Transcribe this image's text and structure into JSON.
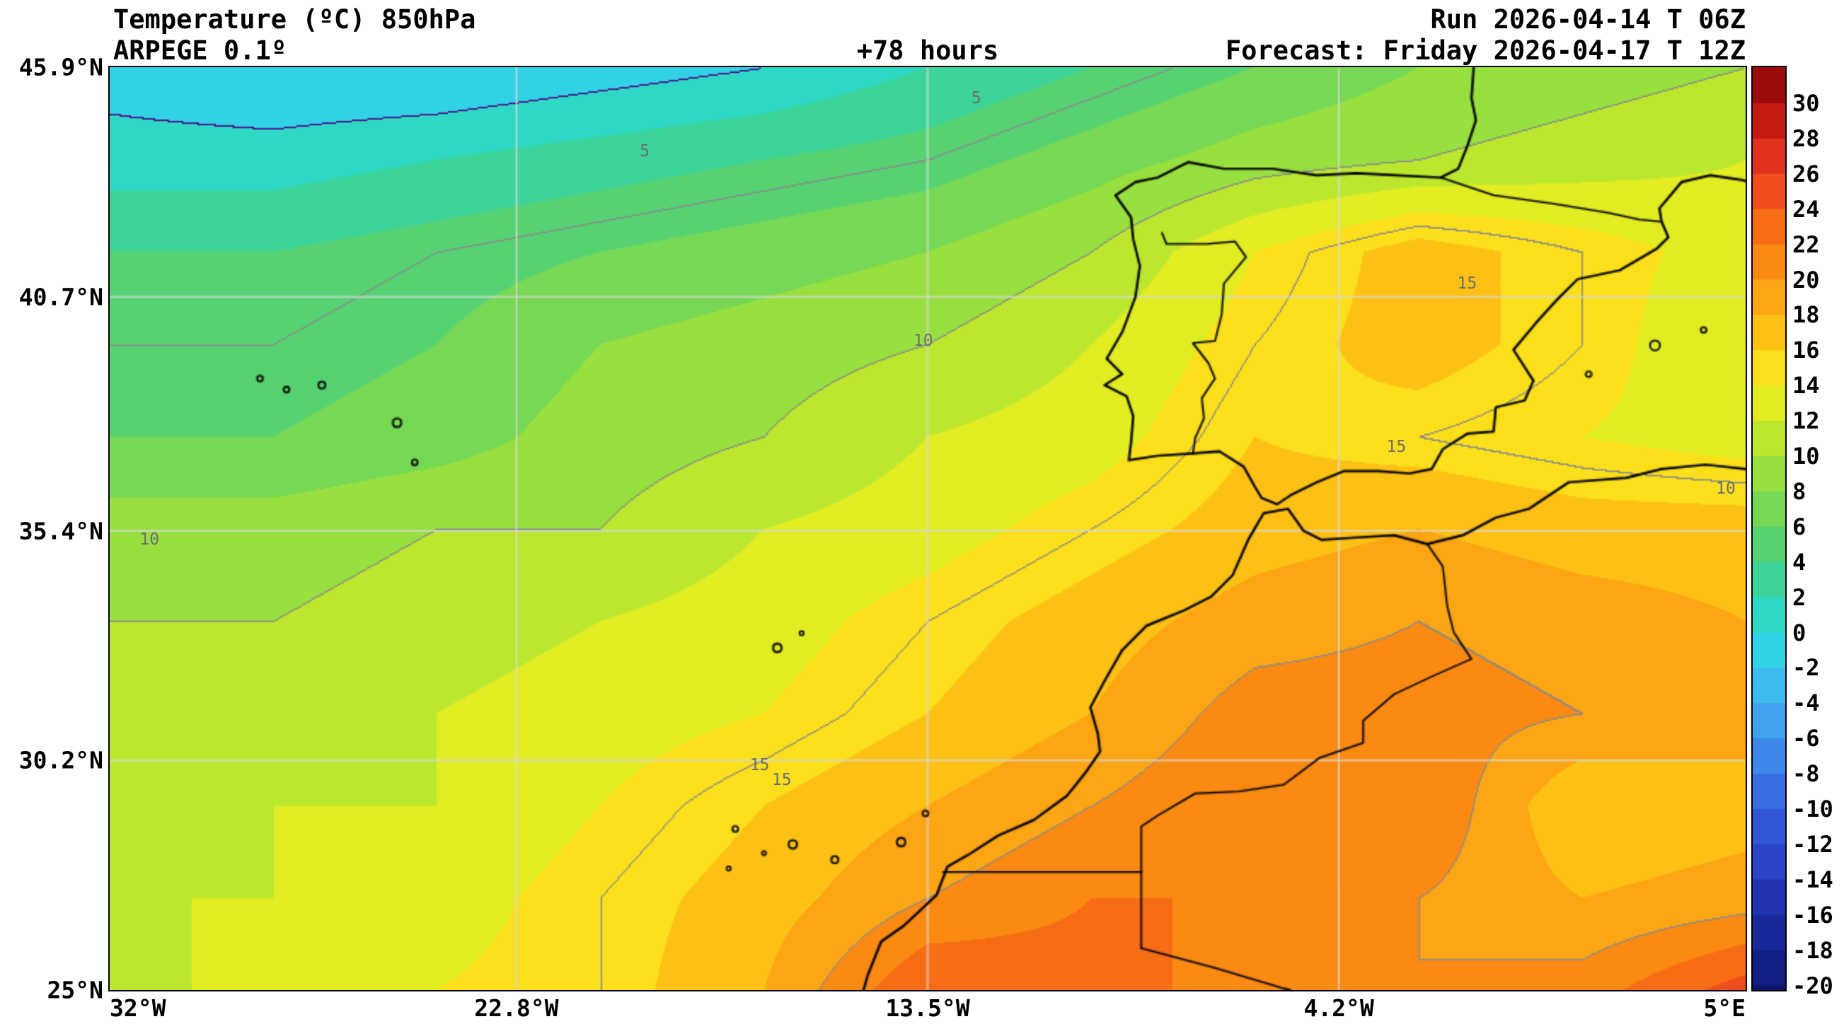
{
  "header": {
    "title": "Temperature (ºC) 850hPa",
    "model": "ARPEGE 0.1º",
    "lead_time": "+78 hours",
    "run": "Run 2026-04-14 T 06Z",
    "forecast": "Forecast: Friday 2026-04-17 T 12Z"
  },
  "chart_data": {
    "type": "heatmap",
    "title": "Temperature (ºC) 850hPa",
    "model": "ARPEGE 0.1º",
    "lead_time": "+78 hours",
    "run": "Run 2026-04-14 T 06Z",
    "valid": "Forecast: Friday 2026-04-17 T 12Z",
    "units": "°C",
    "level": "850hPa",
    "lon_range": [
      -32,
      5
    ],
    "lat_range": [
      25,
      45.9
    ],
    "lat_ticks": [
      {
        "label": "45.9°N",
        "value": 45.9
      },
      {
        "label": "40.7°N",
        "value": 40.7
      },
      {
        "label": "35.4°N",
        "value": 35.4
      },
      {
        "label": "30.2°N",
        "value": 30.2
      },
      {
        "label": "25°N",
        "value": 25
      }
    ],
    "lon_ticks": [
      {
        "label": "32°W",
        "value": -32
      },
      {
        "label": "22.8°W",
        "value": -22.8
      },
      {
        "label": "13.5°W",
        "value": -13.5
      },
      {
        "label": "4.2°W",
        "value": -4.2
      },
      {
        "label": "5°E",
        "value": 5
      }
    ],
    "graticule": {
      "lons": [
        -22.8,
        -13.5,
        -4.2
      ],
      "lats": [
        40.7,
        35.4,
        30.2
      ],
      "color": "#d8d8d8"
    },
    "grid": {
      "lons": [
        -32,
        -28.3,
        -24.6,
        -20.9,
        -17.2,
        -13.5,
        -9.8,
        -6.1,
        -2.4,
        1.3,
        5.0
      ],
      "lats": [
        45.9,
        43.81,
        41.72,
        39.63,
        37.54,
        35.45,
        33.36,
        31.27,
        29.18,
        27.09,
        25.0
      ],
      "values_c": [
        [
          -1,
          -2,
          -2,
          -1,
          0,
          2,
          4,
          6,
          8,
          9,
          10
        ],
        [
          1,
          1,
          2,
          3,
          4,
          5,
          7,
          9,
          10,
          11,
          12
        ],
        [
          4,
          4,
          5,
          6,
          7,
          8,
          10,
          14,
          17,
          15,
          13
        ],
        [
          5,
          5,
          6,
          8,
          9,
          10,
          12,
          15,
          17,
          15,
          12
        ],
        [
          6,
          6,
          7,
          9,
          10,
          12,
          13,
          16,
          15,
          14,
          13
        ],
        [
          9,
          9,
          10,
          10,
          12,
          13,
          15,
          17,
          18,
          17,
          17
        ],
        [
          10,
          10,
          11,
          12,
          13,
          15,
          17,
          19,
          20,
          19,
          18
        ],
        [
          10,
          11,
          12,
          13,
          14,
          16,
          18,
          21,
          21,
          20,
          19
        ],
        [
          11,
          12,
          12,
          14,
          16,
          18,
          20,
          22,
          22,
          16,
          17
        ],
        [
          12,
          12,
          13,
          15,
          17,
          20,
          22,
          22,
          20,
          18,
          19
        ],
        [
          11,
          13,
          14,
          15,
          18,
          24,
          23,
          21,
          20,
          21,
          25
        ]
      ]
    },
    "contours": {
      "interval_c": 5,
      "line_color": "#8a8a8a",
      "zero_line_color": "#4b0082",
      "labels": [
        {
          "text": "5",
          "lon": -19.9,
          "lat": 44.0
        },
        {
          "text": "5",
          "lon": -12.4,
          "lat": 45.2
        },
        {
          "text": "10",
          "lon": -13.6,
          "lat": 39.7
        },
        {
          "text": "10",
          "lon": -31.1,
          "lat": 35.2
        },
        {
          "text": "15",
          "lon": -17.3,
          "lat": 30.1
        },
        {
          "text": "15",
          "lon": -16.8,
          "lat": 29.75
        },
        {
          "text": "15",
          "lon": -2.9,
          "lat": 37.3
        },
        {
          "text": "15",
          "lon": -1.3,
          "lat": 41.0
        },
        {
          "text": "10",
          "lon": 4.55,
          "lat": 36.35
        }
      ]
    },
    "colorbar": {
      "min": -20,
      "max": 30,
      "band_step_c": 2,
      "ticks": [
        30,
        28,
        26,
        24,
        22,
        20,
        18,
        16,
        14,
        12,
        10,
        8,
        6,
        4,
        2,
        0,
        -2,
        -4,
        -6,
        -8,
        -10,
        -12,
        -14,
        -16,
        -18,
        -20
      ],
      "colors_cold_to_hot": [
        "#0c156e",
        "#121f85",
        "#19299c",
        "#2135b2",
        "#2944c6",
        "#3157d6",
        "#386ee2",
        "#3d88ea",
        "#3fa2ee",
        "#3cbcee",
        "#32d2e6",
        "#2fd8c4",
        "#3dd49a",
        "#57d273",
        "#76d854",
        "#98e03f",
        "#bce72f",
        "#e2ec22",
        "#fbdf1b",
        "#fdc116",
        "#fda513",
        "#fb8a12",
        "#f76d16",
        "#ef4f1c",
        "#e0321c",
        "#c51a12",
        "#9c0a0a"
      ]
    },
    "geo": {
      "coastline_color": "#000000",
      "coastlines": [
        {
          "name": "iberia-france",
          "points": [
            [
              -1.15,
              45.9
            ],
            [
              -1.2,
              45.2
            ],
            [
              -1.1,
              44.7
            ],
            [
              -1.3,
              44.1
            ],
            [
              -1.5,
              43.6
            ],
            [
              -1.9,
              43.4
            ],
            [
              -2.9,
              43.45
            ],
            [
              -3.8,
              43.5
            ],
            [
              -4.7,
              43.45
            ],
            [
              -5.7,
              43.6
            ],
            [
              -6.8,
              43.6
            ],
            [
              -7.6,
              43.75
            ],
            [
              -8.3,
              43.4
            ],
            [
              -8.8,
              43.3
            ],
            [
              -9.25,
              43.0
            ],
            [
              -8.9,
              42.5
            ],
            [
              -8.85,
              42.0
            ],
            [
              -8.7,
              41.4
            ],
            [
              -8.8,
              40.7
            ],
            [
              -9.1,
              39.9
            ],
            [
              -9.45,
              39.3
            ],
            [
              -9.1,
              38.95
            ],
            [
              -9.5,
              38.7
            ],
            [
              -9.0,
              38.45
            ],
            [
              -8.85,
              38.0
            ],
            [
              -8.9,
              37.4
            ],
            [
              -8.95,
              37.0
            ],
            [
              -8.3,
              37.1
            ],
            [
              -7.5,
              37.15
            ],
            [
              -6.9,
              37.2
            ],
            [
              -6.35,
              36.85
            ],
            [
              -6.1,
              36.4
            ],
            [
              -5.95,
              36.15
            ],
            [
              -5.6,
              36.0
            ],
            [
              -5.3,
              36.2
            ],
            [
              -4.7,
              36.5
            ],
            [
              -4.1,
              36.75
            ],
            [
              -3.3,
              36.75
            ],
            [
              -2.6,
              36.7
            ],
            [
              -2.1,
              36.8
            ],
            [
              -1.85,
              37.25
            ],
            [
              -1.3,
              37.6
            ],
            [
              -0.7,
              37.65
            ],
            [
              -0.65,
              38.2
            ],
            [
              0.0,
              38.35
            ],
            [
              0.2,
              38.8
            ],
            [
              -0.25,
              39.5
            ],
            [
              0.25,
              40.1
            ],
            [
              0.7,
              40.6
            ],
            [
              1.2,
              41.1
            ],
            [
              2.15,
              41.3
            ],
            [
              3.0,
              41.8
            ],
            [
              3.25,
              42.05
            ],
            [
              3.1,
              42.4
            ],
            [
              3.05,
              42.7
            ],
            [
              3.55,
              43.3
            ],
            [
              4.2,
              43.45
            ],
            [
              4.9,
              43.35
            ],
            [
              5.0,
              43.32
            ]
          ]
        },
        {
          "name": "nw-africa",
          "points": [
            [
              5.0,
              36.8
            ],
            [
              4.1,
              36.9
            ],
            [
              3.1,
              36.8
            ],
            [
              2.3,
              36.6
            ],
            [
              1.0,
              36.5
            ],
            [
              0.1,
              35.9
            ],
            [
              -0.65,
              35.7
            ],
            [
              -1.4,
              35.3
            ],
            [
              -2.2,
              35.1
            ],
            [
              -2.95,
              35.3
            ],
            [
              -3.8,
              35.25
            ],
            [
              -4.6,
              35.2
            ],
            [
              -5.0,
              35.4
            ],
            [
              -5.35,
              35.9
            ],
            [
              -5.9,
              35.8
            ],
            [
              -6.25,
              35.2
            ],
            [
              -6.6,
              34.4
            ],
            [
              -7.1,
              33.9
            ],
            [
              -7.7,
              33.6
            ],
            [
              -8.55,
              33.25
            ],
            [
              -9.1,
              32.7
            ],
            [
              -9.5,
              32.0
            ],
            [
              -9.82,
              31.4
            ],
            [
              -9.65,
              30.8
            ],
            [
              -9.6,
              30.4
            ],
            [
              -9.95,
              29.9
            ],
            [
              -10.35,
              29.4
            ],
            [
              -11.1,
              28.85
            ],
            [
              -11.9,
              28.5
            ],
            [
              -12.6,
              28.05
            ],
            [
              -13.05,
              27.8
            ],
            [
              -13.3,
              27.15
            ],
            [
              -14.05,
              26.45
            ],
            [
              -14.55,
              26.1
            ],
            [
              -14.85,
              25.35
            ],
            [
              -14.95,
              25.0
            ]
          ]
        }
      ],
      "borders": [
        {
          "name": "france-spain",
          "points": [
            [
              -1.9,
              43.4
            ],
            [
              -0.7,
              43.0
            ],
            [
              0.7,
              42.8
            ],
            [
              1.9,
              42.6
            ],
            [
              2.6,
              42.45
            ],
            [
              3.1,
              42.4
            ]
          ]
        },
        {
          "name": "portugal-spain",
          "points": [
            [
              -8.2,
              42.15
            ],
            [
              -8.1,
              41.9
            ],
            [
              -7.2,
              41.9
            ],
            [
              -6.55,
              41.95
            ],
            [
              -6.3,
              41.6
            ],
            [
              -6.8,
              41.0
            ],
            [
              -6.85,
              40.3
            ],
            [
              -7.0,
              39.7
            ],
            [
              -7.5,
              39.65
            ],
            [
              -7.15,
              39.2
            ],
            [
              -7.0,
              38.85
            ],
            [
              -7.3,
              38.4
            ],
            [
              -7.25,
              37.95
            ],
            [
              -7.45,
              37.5
            ],
            [
              -7.5,
              37.15
            ]
          ]
        },
        {
          "name": "morocco-algeria",
          "points": [
            [
              -2.2,
              35.1
            ],
            [
              -1.85,
              34.6
            ],
            [
              -1.75,
              33.7
            ],
            [
              -1.6,
              33.1
            ],
            [
              -1.2,
              32.5
            ],
            [
              -2.1,
              32.1
            ],
            [
              -2.95,
              31.7
            ],
            [
              -3.65,
              31.1
            ],
            [
              -3.65,
              30.6
            ],
            [
              -4.65,
              30.25
            ],
            [
              -5.45,
              29.65
            ],
            [
              -6.45,
              29.5
            ],
            [
              -7.45,
              29.45
            ],
            [
              -8.3,
              28.95
            ],
            [
              -8.67,
              28.7
            ],
            [
              -8.67,
              27.67
            ]
          ]
        },
        {
          "name": "morocco-wsahara",
          "points": [
            [
              -13.15,
              27.67
            ],
            [
              -8.67,
              27.67
            ]
          ]
        },
        {
          "name": "wsahara-algeria",
          "points": [
            [
              -8.67,
              27.67
            ],
            [
              -8.67,
              25.95
            ]
          ]
        },
        {
          "name": "algeria-mauritania",
          "points": [
            [
              -8.67,
              25.95
            ],
            [
              -7.0,
              25.5
            ],
            [
              -5.5,
              25.05
            ],
            [
              -5.3,
              25.0
            ]
          ]
        }
      ],
      "islands": [
        {
          "name": "azores-faial",
          "lon": -28.6,
          "lat": 38.85,
          "r": 4
        },
        {
          "name": "azores-sao-jorge",
          "lon": -28.0,
          "lat": 38.6,
          "r": 4
        },
        {
          "name": "azores-terceira",
          "lon": -27.2,
          "lat": 38.7,
          "r": 5
        },
        {
          "name": "azores-sao-miguel",
          "lon": -25.5,
          "lat": 37.85,
          "r": 6
        },
        {
          "name": "azores-santa-maria",
          "lon": -25.1,
          "lat": 36.95,
          "r": 4
        },
        {
          "name": "madeira",
          "lon": -16.9,
          "lat": 32.75,
          "r": 6
        },
        {
          "name": "porto-santo",
          "lon": -16.35,
          "lat": 33.08,
          "r": 3
        },
        {
          "name": "la-palma",
          "lon": -17.85,
          "lat": 28.65,
          "r": 4
        },
        {
          "name": "el-hierro",
          "lon": -18.0,
          "lat": 27.75,
          "r": 3
        },
        {
          "name": "la-gomera",
          "lon": -17.2,
          "lat": 28.1,
          "r": 3
        },
        {
          "name": "tenerife",
          "lon": -16.55,
          "lat": 28.3,
          "r": 6
        },
        {
          "name": "gran-canaria",
          "lon": -15.6,
          "lat": 27.95,
          "r": 5
        },
        {
          "name": "fuerteventura",
          "lon": -14.1,
          "lat": 28.35,
          "r": 6
        },
        {
          "name": "lanzarote",
          "lon": -13.55,
          "lat": 29.0,
          "r": 4
        },
        {
          "name": "ibiza",
          "lon": 1.45,
          "lat": 38.95,
          "r": 4
        },
        {
          "name": "mallorca",
          "lon": 2.95,
          "lat": 39.6,
          "r": 7
        },
        {
          "name": "menorca",
          "lon": 4.05,
          "lat": 39.95,
          "r": 4
        }
      ]
    }
  }
}
